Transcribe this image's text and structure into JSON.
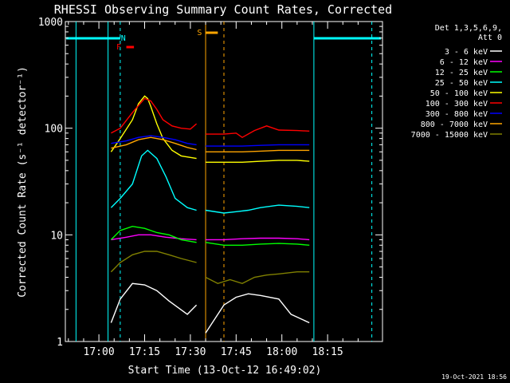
{
  "chart_data": {
    "type": "line",
    "title": "RHESSI Observing Summary Count Rates, Corrected",
    "xlabel": "Start Time (13-Oct-12 16:49:02)",
    "ylabel": "Corrected Count Rate (s⁻¹ detector⁻¹)",
    "yscale": "log",
    "ylim": [
      1,
      1000
    ],
    "xlim_minutes": [
      0,
      104
    ],
    "x_ticks": [
      {
        "minute": 11,
        "label": "17:00"
      },
      {
        "minute": 26,
        "label": "17:15"
      },
      {
        "minute": 41,
        "label": "17:30"
      },
      {
        "minute": 56,
        "label": "17:45"
      },
      {
        "minute": 71,
        "label": "18:00"
      },
      {
        "minute": 86,
        "label": "18:15"
      }
    ],
    "y_ticks": [
      {
        "value": 1,
        "label": "1"
      },
      {
        "value": 10,
        "label": "10"
      },
      {
        "value": 100,
        "label": "100"
      },
      {
        "value": 1000,
        "label": "1000"
      }
    ],
    "legend": {
      "placement": "right",
      "header": [
        "Det 1,3,5,6,9,",
        "Att 0"
      ]
    },
    "series": [
      {
        "name": "3 - 6 keV",
        "color": "#ffffff",
        "x": [
          15,
          18,
          22,
          26,
          30,
          34,
          40,
          43,
          46,
          52,
          56,
          60,
          64,
          70,
          74,
          80
        ],
        "y": [
          1.5,
          2.5,
          3.5,
          3.4,
          3,
          2.4,
          1.8,
          2.2,
          1.2,
          2.2,
          2.6,
          2.8,
          2.7,
          2.5,
          1.8,
          1.5
        ]
      },
      {
        "name": "6 - 12 keV",
        "color": "#ff00ff",
        "x": [
          15,
          20,
          24,
          28,
          33,
          38,
          43,
          46,
          52,
          58,
          64,
          70,
          76,
          80
        ],
        "y": [
          9,
          9.5,
          10,
          10,
          9.5,
          9.2,
          9,
          9,
          9,
          9.2,
          9.3,
          9.3,
          9.2,
          9
        ]
      },
      {
        "name": "12 - 25 keV",
        "color": "#00ff00",
        "x": [
          15,
          18,
          22,
          26,
          30,
          34,
          38,
          43,
          46,
          52,
          58,
          64,
          70,
          76,
          80
        ],
        "y": [
          9,
          11,
          12,
          11.5,
          10.5,
          10,
          9,
          8.5,
          8.5,
          8,
          8,
          8.2,
          8.3,
          8.2,
          8
        ]
      },
      {
        "name": "25 - 50 keV",
        "color": "#00ffff",
        "x": [
          15,
          18,
          22,
          25,
          27,
          30,
          33,
          36,
          40,
          43,
          46,
          52,
          56,
          60,
          64,
          70,
          76,
          80
        ],
        "y": [
          18,
          22,
          30,
          55,
          62,
          52,
          35,
          22,
          18,
          17,
          17,
          16,
          16.5,
          17,
          18,
          19,
          18.5,
          18
        ]
      },
      {
        "name": "50 - 100 keV",
        "color": "#ffff00",
        "x": [
          15,
          18,
          22,
          24,
          26,
          27,
          28,
          30,
          32,
          35,
          38,
          43,
          46,
          52,
          58,
          64,
          70,
          76,
          80
        ],
        "y": [
          60,
          80,
          120,
          170,
          200,
          190,
          160,
          110,
          80,
          62,
          55,
          52,
          48,
          48,
          48,
          49,
          50,
          50,
          49
        ]
      },
      {
        "name": "100 - 300 keV",
        "color": "#ff0000",
        "x": [
          15,
          18,
          22,
          26,
          28,
          30,
          32,
          35,
          38,
          41,
          43,
          46,
          52,
          56,
          58,
          62,
          66,
          70,
          76,
          80
        ],
        "y": [
          90,
          100,
          140,
          190,
          180,
          150,
          120,
          105,
          100,
          98,
          110,
          88,
          88,
          90,
          82,
          95,
          105,
          96,
          95,
          94
        ]
      },
      {
        "name": "300 - 800 keV",
        "color": "#0000ff",
        "x": [
          15,
          20,
          24,
          28,
          32,
          36,
          40,
          43,
          46,
          52,
          58,
          64,
          70,
          76,
          80
        ],
        "y": [
          72,
          76,
          82,
          85,
          82,
          78,
          72,
          70,
          68,
          68,
          68,
          69,
          70,
          70,
          70
        ]
      },
      {
        "name": "800 - 7000 keV",
        "color": "#ffa500",
        "x": [
          15,
          20,
          24,
          28,
          32,
          36,
          40,
          43,
          46,
          52,
          58,
          64,
          70,
          76,
          80
        ],
        "y": [
          65,
          70,
          78,
          82,
          78,
          72,
          66,
          63,
          60,
          60,
          60,
          61,
          62,
          62,
          62
        ]
      },
      {
        "name": "7000 - 15000 keV",
        "color": "#808000",
        "x": [
          15,
          18,
          22,
          26,
          30,
          34,
          38,
          43,
          46,
          50,
          54,
          58,
          62,
          66,
          70,
          76,
          80
        ],
        "y": [
          4.5,
          5.5,
          6.5,
          7,
          7,
          6.5,
          6,
          5.5,
          4,
          3.5,
          3.8,
          3.5,
          4,
          4.2,
          4.3,
          4.5,
          4.5
        ]
      }
    ],
    "annotations": [
      {
        "label": "N",
        "color": "#00ffff"
      },
      {
        "label": "F",
        "color": "#ff0000"
      },
      {
        "label": "S",
        "color": "#ffa500"
      }
    ],
    "footer": "19-Oct-2021 18:56"
  }
}
